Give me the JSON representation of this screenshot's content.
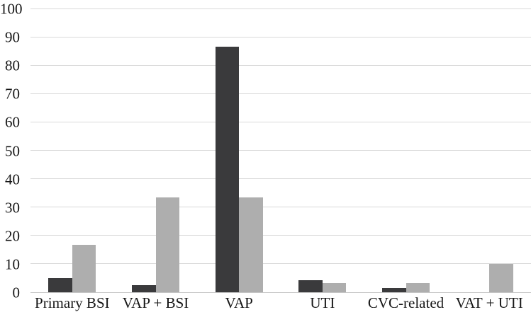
{
  "chart_data": {
    "type": "bar",
    "title": "",
    "xlabel": "",
    "ylabel": "",
    "categories": [
      "Primary BSI",
      "VAP + BSI",
      "VAP",
      "UTI",
      "CVC-related",
      "VAT + UTI"
    ],
    "series": [
      {
        "name": "dark",
        "color": "#3a3a3c",
        "values": [
          5,
          2.5,
          86.5,
          4.2,
          1.5,
          0
        ]
      },
      {
        "name": "gray",
        "color": "#aeaeae",
        "values": [
          16.7,
          33.3,
          33.3,
          3.3,
          3.3,
          10
        ]
      }
    ],
    "ylim": [
      0,
      100
    ],
    "ytick_step": 10,
    "yticklabels": [
      "0",
      "10",
      "20",
      "30",
      "40",
      "50",
      "60",
      "70",
      "80",
      "90",
      "100"
    ],
    "grid": true,
    "legend": false,
    "gridline_color": "#d9d9d9",
    "axis_line_color": "#c6c6c6",
    "background": "#ffffff",
    "text_color": "#161616"
  }
}
